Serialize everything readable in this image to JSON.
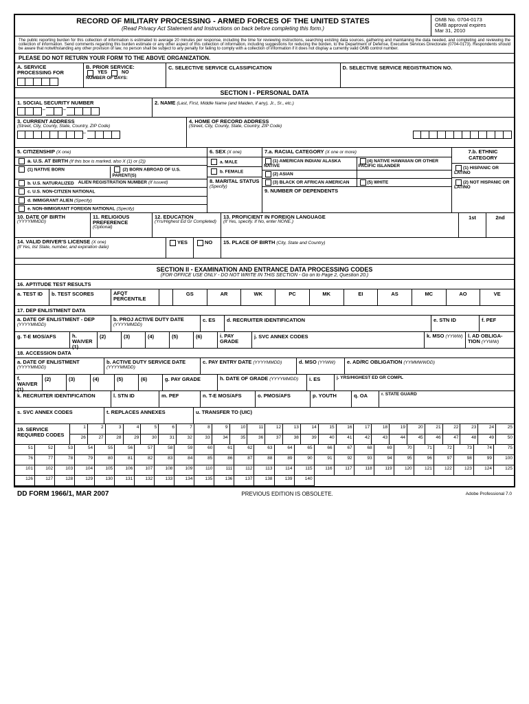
{
  "header": {
    "title": "RECORD OF MILITARY PROCESSING - ARMED FORCES OF THE UNITED STATES",
    "subtitle": "(Read Privacy Act Statement and Instructions on back before completing this form.)",
    "omb_no": "OMB No. 0704-0173",
    "omb_exp": "OMB approval expires",
    "omb_date": "Mar 31, 2010"
  },
  "burden": "The public reporting burden for this collection of information is estimated to average 20 minutes per response, including the time for reviewing instructions, searching existing data sources, gathering and maintaining the data needed, and completing and reviewing the collection of information. Send comments regarding this burden estimate or any other aspect of this collection of information, including suggestions for reducing the burden, to the Department of Defense, Executive Services Directorate (0704-0173). Respondents should be aware that notwithstanding any other provision of law, no person shall be subject to any penalty for failing to comply with a collection of information if it does not display a currently valid OMB control number.",
  "please": "PLEASE DO NOT RETURN YOUR FORM TO THE ABOVE ORGANIZATION.",
  "topA": "A. SERVICE PROCESSING FOR",
  "topB": "B. PRIOR SERVICE:",
  "topB_yes": "YES",
  "topB_no": "NO",
  "topB_days": "NUMBER OF DAYS:",
  "topC": "C. SELECTIVE SERVICE CLASSIFICATION",
  "topD": "D. SELECTIVE SERVICE REGISTRATION NO.",
  "sec1": "SECTION I - PERSONAL DATA",
  "f1": "1. SOCIAL SECURITY NUMBER",
  "f2": "2. NAME",
  "f2_hint": "(Last, First, Middle Name (and Maiden, if any), Jr., Sr., etc.)",
  "f3": "3. CURRENT ADDRESS",
  "f3_hint": "(Street, City, County, State, Country, ZIP Code)",
  "f4": "4. HOME OF RECORD ADDRESS",
  "f4_hint": "(Street, City, County, State, Country, ZIP Code)",
  "f5": "5. CITIZENSHIP",
  "f5_x": "(X one)",
  "f5a": "a. U.S. AT BIRTH",
  "f5a_hint": "(If this box is marked, also X (1) or (2))",
  "f5a1": "(1) NATIVE BORN",
  "f5a2": "(2) BORN ABROAD OF U.S. PARENT(S)",
  "f5b": "b. U.S. NATURALIZED",
  "f5b2": "ALIEN REGISTRATION NUMBER",
  "f5b2_hint": "(If issued)",
  "f5c": "c. U.S. NON-CITIZEN NATIONAL",
  "f5d": "d. IMMIGRANT ALIEN",
  "f5d_hint": "(Specify)",
  "f5e": "e. NON-IMMIGRANT FOREIGN NATIONAL",
  "f5e_hint": "(Specify)",
  "f6": "6. SEX",
  "f6_x": "(X one)",
  "f6a": "a. MALE",
  "f6b": "b. FEMALE",
  "f7a": "7.a. RACIAL CATEGORY",
  "f7a_x": "(X one or more)",
  "f7a1": "(1) AMERICAN INDIAN/ ALASKA NATIVE",
  "f7a2": "(2) ASIAN",
  "f7a3": "(3) BLACK OR AFRICAN AMERICAN",
  "f7a4": "(4) NATIVE HAWAIIAN OR OTHER PACIFIC ISLANDER",
  "f7a5": "(5) WHITE",
  "f7b": "7.b. ETHNIC CATEGORY",
  "f7b1": "(1) HISPANIC OR LATINO",
  "f7b2": "(2) NOT HISPANIC OR LATINO",
  "f8": "8. MARITAL STATUS",
  "f8_hint": "(Specify)",
  "f9": "9. NUMBER OF DEPENDENTS",
  "f10": "10. DATE OF BIRTH",
  "f10_hint": "(YYYYMMDD)",
  "f11": "11. RELIGIOUS PREFERENCE",
  "f11_hint": "(Optional)",
  "f12": "12. EDUCATION",
  "f12_hint": "(Yrs/Highest Ed Gr Completed)",
  "f13": "13. PROFICIENT IN FOREIGN LANGUAGE",
  "f13_hint": "(If Yes, specify. If No, enter NONE.)",
  "f13_1st": "1st",
  "f13_2nd": "2nd",
  "f14": "14. VALID DRIVER'S LICENSE",
  "f14_x": "(X one)",
  "f14_hint": "(If Yes, list State, number, and expiration date)",
  "f14_yes": "YES",
  "f14_no": "NO",
  "f15": "15. PLACE OF BIRTH",
  "f15_hint": "(City, State and Country)",
  "sec2": "SECTION II - EXAMINATION AND ENTRANCE DATA PROCESSING CODES",
  "sec2_sub": "(FOR OFFICE USE ONLY - DO NOT WRITE IN THIS SECTION - Go on to Page 2, Question 20.)",
  "f16": "16. APTITUDE TEST RESULTS",
  "f16a": "a. TEST ID",
  "f16b": "b. TEST SCORES",
  "f16_afqt": "AFQT PERCENTILE",
  "tests": [
    "GS",
    "AR",
    "WK",
    "PC",
    "MK",
    "EI",
    "AS",
    "MC",
    "AO",
    "VE"
  ],
  "f17": "17. DEP ENLISTMENT DATA",
  "f17a": "a. DATE OF ENLISTMENT - DEP",
  "f17a_hint": "(YYYYMMDD)",
  "f17b": "b. PROJ ACTIVE DUTY DATE",
  "f17b_hint": "(YYYYMMDD)",
  "f17c": "c. ES",
  "f17d": "d. RECRUITER IDENTIFICATION",
  "f17e": "e. STN ID",
  "f17f": "f. PEF",
  "f17g": "g. T-E MOS/AFS",
  "f17h": "h. WAIVER",
  "f17_w": [
    "(1)",
    "(2)",
    "(3)",
    "(4)",
    "(5)",
    "(6)"
  ],
  "f17i": "i. PAY GRADE",
  "f17j": "j. SVC ANNEX CODES",
  "f17k": "k. MSO",
  "f17k_hint": "(YYWW)",
  "f17l": "l. AD OBLIGA-TION",
  "f17l_hint": "(YYWW)",
  "f18": "18. ACCESSION DATA",
  "f18a": "a. DATE OF ENLISTMENT",
  "f18a_hint": "(YYYYMMDD)",
  "f18b": "b. ACTIVE DUTY SERVICE DATE",
  "f18b_hint": "(YYYYMMDD)",
  "f18c": "c. PAY ENTRY DATE",
  "f18c_hint": "(YYYYMMDD)",
  "f18d": "d. MSO",
  "f18d_hint": "(YYWW)",
  "f18e": "e. AD/RC OBLIGATION",
  "f18e_hint": "(YYMMWWDD)",
  "f18f": "f. WAIVER",
  "f18g": "g. PAY GRADE",
  "f18h": "h. DATE OF GRADE",
  "f18h_hint": "(YYYYMMDD)",
  "f18i": "i. ES",
  "f18j": "j. YRS/HIGHEST ED GR COMPL",
  "f18k": "k. RECRUITER IDENTIFICATION",
  "f18l": "l. STN ID",
  "f18m": "m. PEF",
  "f18n": "n. T-E MOS/AFS",
  "f18o": "o. PMOS/AFS",
  "f18p": "p. YOUTH",
  "f18q": "q. OA",
  "f18r": "r. STATE GUARD",
  "f18s": "s. SVC ANNEX CODES",
  "f18t": "t. REPLACES ANNEXES",
  "f18u": "u. TRANSFER TO (UIC)",
  "f19": "19. SERVICE REQUIRED CODES",
  "footer": {
    "form": "DD FORM 1966/1, MAR 2007",
    "center": "PREVIOUS EDITION IS OBSOLETE.",
    "right": "Adobe Professional 7.0"
  }
}
